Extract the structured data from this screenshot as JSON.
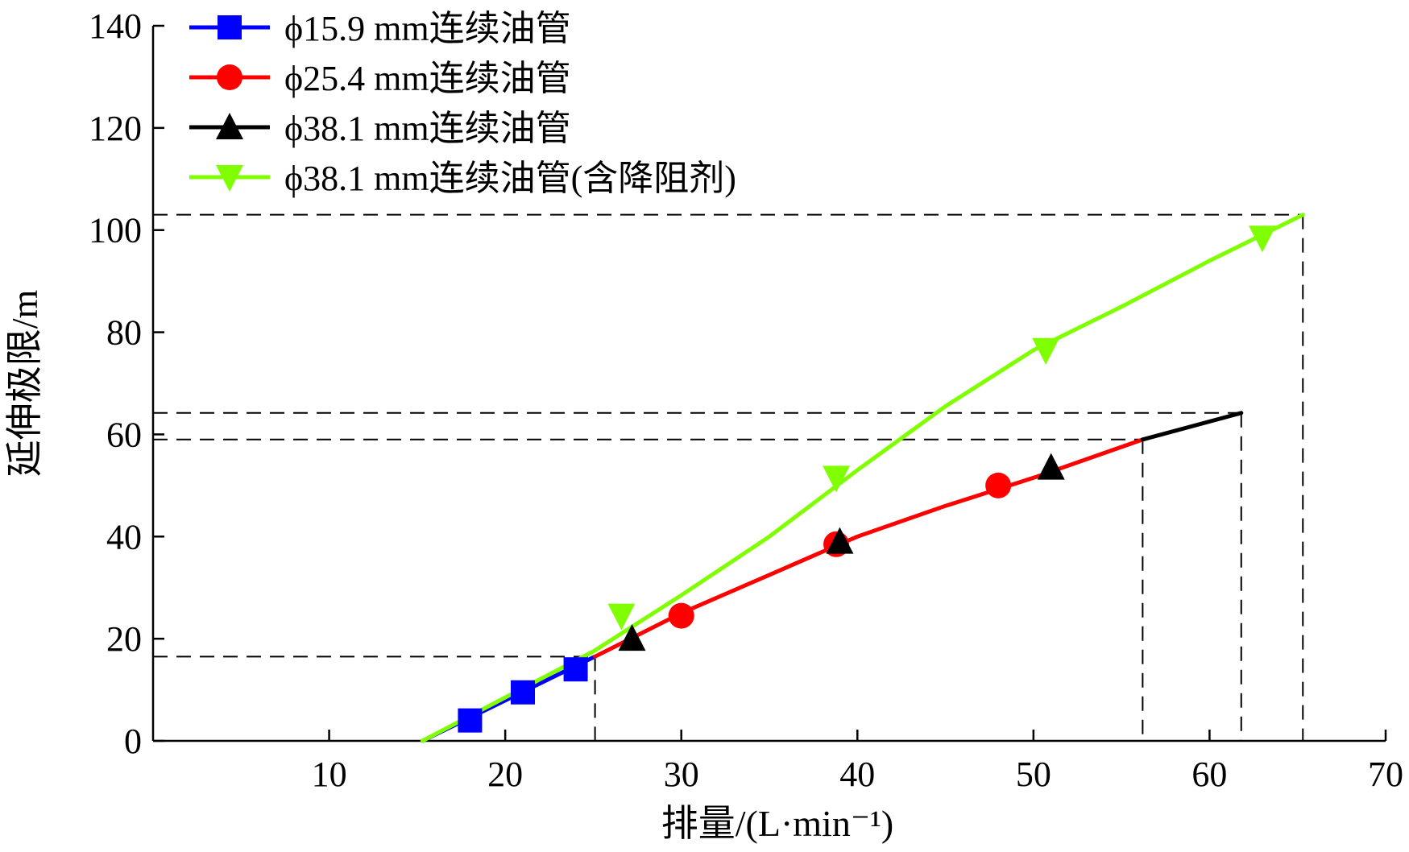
{
  "chart_data": {
    "type": "line",
    "xlabel": "排量/(L·min⁻¹)",
    "ylabel": "延伸极限/m",
    "xlim": [
      0,
      70
    ],
    "ylim": [
      0,
      140
    ],
    "x_ticks": [
      10,
      20,
      30,
      40,
      50,
      60,
      70
    ],
    "y_ticks": [
      0,
      20,
      40,
      60,
      80,
      100,
      120,
      140
    ],
    "grid": false,
    "legend_position": "top-left",
    "series": [
      {
        "name": "ϕ15.9 mm连续油管",
        "color": "#0000ff",
        "marker": "square",
        "line": [
          [
            15.3,
            0
          ],
          [
            25.1,
            16.5
          ]
        ],
        "points": [
          [
            18,
            4
          ],
          [
            21,
            9.5
          ],
          [
            24,
            14
          ]
        ]
      },
      {
        "name": "ϕ25.4 mm连续油管",
        "color": "#ff0000",
        "marker": "circle",
        "line": [
          [
            25.1,
            16.5
          ],
          [
            30,
            25
          ],
          [
            35,
            32.5
          ],
          [
            40,
            40
          ],
          [
            45,
            46
          ],
          [
            50,
            51.5
          ],
          [
            56.2,
            59
          ]
        ],
        "points": [
          [
            30,
            24.5
          ],
          [
            38.8,
            38.5
          ],
          [
            48,
            50
          ]
        ]
      },
      {
        "name": "ϕ38.1 mm连续油管",
        "color": "#000000",
        "marker": "triangle-up",
        "line": [
          [
            56.2,
            59
          ],
          [
            61.8,
            64.2
          ]
        ],
        "points": [
          [
            27.2,
            20
          ],
          [
            39,
            39
          ],
          [
            51,
            53.5
          ]
        ]
      },
      {
        "name": "ϕ38.1 mm连续油管(含降阻剂)",
        "color": "#7fff00",
        "marker": "triangle-down",
        "line": [
          [
            15.3,
            0
          ],
          [
            20,
            8.5
          ],
          [
            25,
            17.5
          ],
          [
            30,
            28.5
          ],
          [
            35,
            40
          ],
          [
            40,
            53
          ],
          [
            45,
            65.5
          ],
          [
            50,
            76.5
          ],
          [
            55,
            85
          ],
          [
            60,
            94
          ],
          [
            65.3,
            103
          ]
        ],
        "points": [
          [
            26.6,
            24.5
          ],
          [
            38.8,
            51.5
          ],
          [
            50.7,
            76.5
          ],
          [
            63,
            98.5
          ]
        ]
      }
    ],
    "reference_lines": [
      {
        "x": 25.1,
        "y": 16.5
      },
      {
        "x": 56.2,
        "y": 59
      },
      {
        "x": 61.8,
        "y": 64.2
      },
      {
        "x": 65.3,
        "y": 103
      }
    ]
  }
}
